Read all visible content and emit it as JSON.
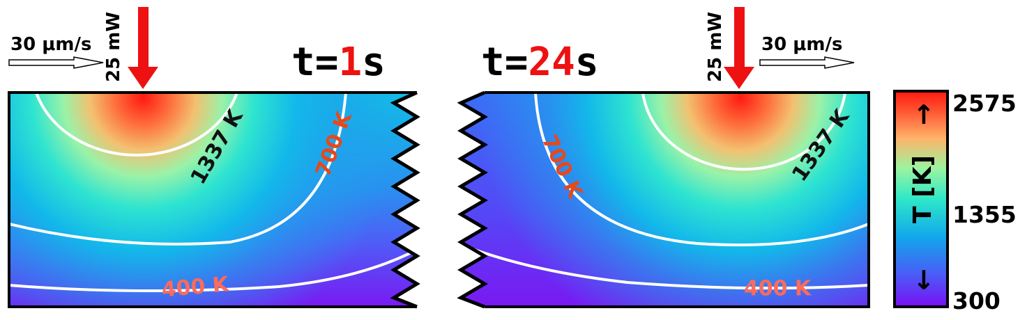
{
  "left_panel": {
    "time_prefix": "t=",
    "time_value": "1",
    "time_unit": "s",
    "speed_label": "30 μm/s",
    "power_label": "25 mW",
    "contours": {
      "c1337": "1337 K",
      "c700": "700 K",
      "c400": "400 K"
    }
  },
  "right_panel": {
    "time_prefix": "t=",
    "time_value": "24",
    "time_unit": "s",
    "speed_label": "30 μm/s",
    "power_label": "25 mW",
    "contours": {
      "c1337": "1337 K",
      "c700": "700 K",
      "c400": "400 K"
    }
  },
  "colorbar": {
    "label": "T [K]",
    "up_arrow": "↑",
    "down_arrow": "↓",
    "ticks": {
      "max": "2575",
      "mid": "1355",
      "min": "300"
    }
  },
  "colors": {
    "laser_arrow": "#ee1111",
    "time_highlight": "#ee1111",
    "contour_line": "#ffffff",
    "label_700": "#e84818",
    "label_400": "#ff6a5a",
    "label_1337": "#111111",
    "frame": "#000000"
  }
}
